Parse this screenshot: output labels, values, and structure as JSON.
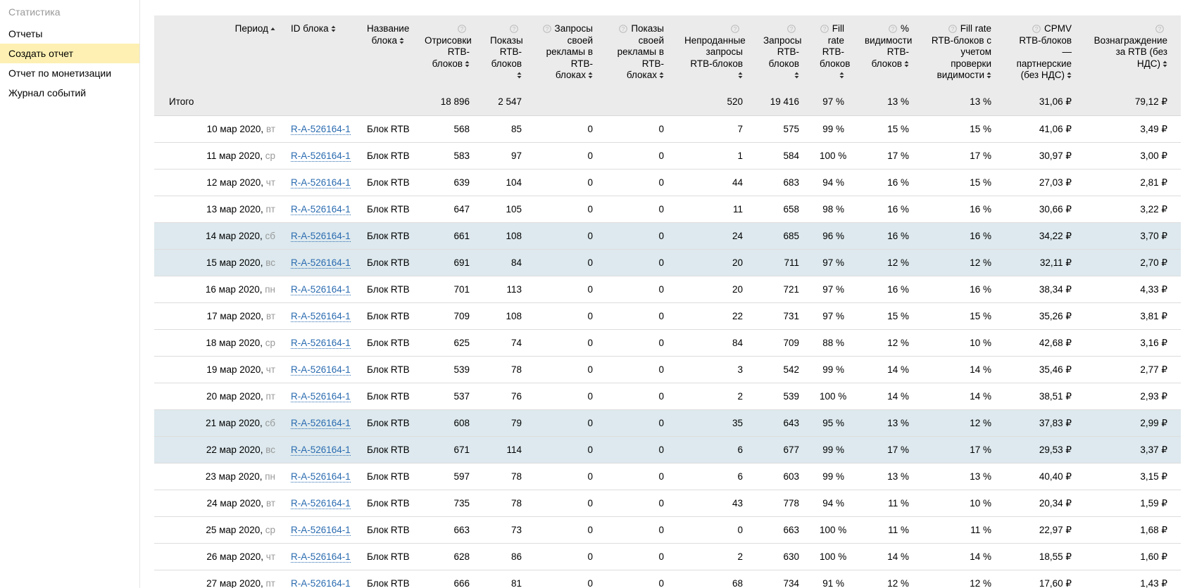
{
  "sidebar": {
    "title": "Статистика",
    "items": [
      "Отчеты",
      "Создать отчет",
      "Отчет по монетизации",
      "Журнал событий"
    ],
    "active": 1
  },
  "table": {
    "headers": [
      {
        "text": "Период",
        "help": false,
        "sort": "asc",
        "align": "right"
      },
      {
        "text": "ID блока",
        "help": false,
        "sort": "both",
        "align": "left"
      },
      {
        "text": "Название блока",
        "help": false,
        "sort": "both",
        "align": "right"
      },
      {
        "text": "Отрисовки RTB-блоков",
        "help": true,
        "sort": "both",
        "align": "right"
      },
      {
        "text": "Показы RTB-блоков",
        "help": true,
        "sort": "both",
        "align": "right"
      },
      {
        "text": "Запросы своей рекламы в RTB-блоках",
        "help": true,
        "sort": "both",
        "align": "right"
      },
      {
        "text": "Показы своей рекламы в RTB-блоках",
        "help": true,
        "sort": "both",
        "align": "right"
      },
      {
        "text": "Непроданные запросы RTB-блоков",
        "help": true,
        "sort": "both",
        "align": "right"
      },
      {
        "text": "Запросы RTB-блоков",
        "help": true,
        "sort": "both",
        "align": "right"
      },
      {
        "text": "Fill rate RTB-блоков",
        "help": true,
        "sort": "both",
        "align": "right"
      },
      {
        "text": "% видимости RTB-блоков",
        "help": true,
        "sort": "both",
        "align": "right"
      },
      {
        "text": "Fill rate RTB-блоков с учетом проверки видимости",
        "help": true,
        "sort": "both",
        "align": "right"
      },
      {
        "text": "CPMV RTB-блоков — партнерские (без НДС)",
        "help": true,
        "sort": "both",
        "align": "right"
      },
      {
        "text": "Вознаграждение за RTB (без НДС)",
        "help": true,
        "sort": "both",
        "align": "right"
      }
    ],
    "totals": {
      "label": "Итого",
      "cells": [
        "18 896",
        "2 547",
        null,
        null,
        "520",
        "19 416",
        "97 %",
        "13 %",
        "13 %",
        "31,06 ₽",
        "79,12 ₽"
      ]
    },
    "rows": [
      {
        "date": "10 мар 2020,",
        "weekday": "вт",
        "id": "R-A-526164-1",
        "name": "Блок RTB",
        "highlight": false,
        "cells": [
          "568",
          "85",
          "0",
          "0",
          "7",
          "575",
          "99 %",
          "15 %",
          "15 %",
          "41,06 ₽",
          "3,49 ₽"
        ]
      },
      {
        "date": "11 мар 2020,",
        "weekday": "ср",
        "id": "R-A-526164-1",
        "name": "Блок RTB",
        "highlight": false,
        "cells": [
          "583",
          "97",
          "0",
          "0",
          "1",
          "584",
          "100 %",
          "17 %",
          "17 %",
          "30,97 ₽",
          "3,00 ₽"
        ]
      },
      {
        "date": "12 мар 2020,",
        "weekday": "чт",
        "id": "R-A-526164-1",
        "name": "Блок RTB",
        "highlight": false,
        "cells": [
          "639",
          "104",
          "0",
          "0",
          "44",
          "683",
          "94 %",
          "16 %",
          "15 %",
          "27,03 ₽",
          "2,81 ₽"
        ]
      },
      {
        "date": "13 мар 2020,",
        "weekday": "пт",
        "id": "R-A-526164-1",
        "name": "Блок RTB",
        "highlight": false,
        "cells": [
          "647",
          "105",
          "0",
          "0",
          "11",
          "658",
          "98 %",
          "16 %",
          "16 %",
          "30,66 ₽",
          "3,22 ₽"
        ]
      },
      {
        "date": "14 мар 2020,",
        "weekday": "сб",
        "id": "R-A-526164-1",
        "name": "Блок RTB",
        "highlight": true,
        "cells": [
          "661",
          "108",
          "0",
          "0",
          "24",
          "685",
          "96 %",
          "16 %",
          "16 %",
          "34,22 ₽",
          "3,70 ₽"
        ]
      },
      {
        "date": "15 мар 2020,",
        "weekday": "вс",
        "id": "R-A-526164-1",
        "name": "Блок RTB",
        "highlight": true,
        "cells": [
          "691",
          "84",
          "0",
          "0",
          "20",
          "711",
          "97 %",
          "12 %",
          "12 %",
          "32,11 ₽",
          "2,70 ₽"
        ]
      },
      {
        "date": "16 мар 2020,",
        "weekday": "пн",
        "id": "R-A-526164-1",
        "name": "Блок RTB",
        "highlight": false,
        "cells": [
          "701",
          "113",
          "0",
          "0",
          "20",
          "721",
          "97 %",
          "16 %",
          "16 %",
          "38,34 ₽",
          "4,33 ₽"
        ]
      },
      {
        "date": "17 мар 2020,",
        "weekday": "вт",
        "id": "R-A-526164-1",
        "name": "Блок RTB",
        "highlight": false,
        "cells": [
          "709",
          "108",
          "0",
          "0",
          "22",
          "731",
          "97 %",
          "15 %",
          "15 %",
          "35,26 ₽",
          "3,81 ₽"
        ]
      },
      {
        "date": "18 мар 2020,",
        "weekday": "ср",
        "id": "R-A-526164-1",
        "name": "Блок RTB",
        "highlight": false,
        "cells": [
          "625",
          "74",
          "0",
          "0",
          "84",
          "709",
          "88 %",
          "12 %",
          "10 %",
          "42,68 ₽",
          "3,16 ₽"
        ]
      },
      {
        "date": "19 мар 2020,",
        "weekday": "чт",
        "id": "R-A-526164-1",
        "name": "Блок RTB",
        "highlight": false,
        "cells": [
          "539",
          "78",
          "0",
          "0",
          "3",
          "542",
          "99 %",
          "14 %",
          "14 %",
          "35,46 ₽",
          "2,77 ₽"
        ]
      },
      {
        "date": "20 мар 2020,",
        "weekday": "пт",
        "id": "R-A-526164-1",
        "name": "Блок RTB",
        "highlight": false,
        "cells": [
          "537",
          "76",
          "0",
          "0",
          "2",
          "539",
          "100 %",
          "14 %",
          "14 %",
          "38,51 ₽",
          "2,93 ₽"
        ]
      },
      {
        "date": "21 мар 2020,",
        "weekday": "сб",
        "id": "R-A-526164-1",
        "name": "Блок RTB",
        "highlight": true,
        "cells": [
          "608",
          "79",
          "0",
          "0",
          "35",
          "643",
          "95 %",
          "13 %",
          "12 %",
          "37,83 ₽",
          "2,99 ₽"
        ]
      },
      {
        "date": "22 мар 2020,",
        "weekday": "вс",
        "id": "R-A-526164-1",
        "name": "Блок RTB",
        "highlight": true,
        "cells": [
          "671",
          "114",
          "0",
          "0",
          "6",
          "677",
          "99 %",
          "17 %",
          "17 %",
          "29,53 ₽",
          "3,37 ₽"
        ]
      },
      {
        "date": "23 мар 2020,",
        "weekday": "пн",
        "id": "R-A-526164-1",
        "name": "Блок RTB",
        "highlight": false,
        "cells": [
          "597",
          "78",
          "0",
          "0",
          "6",
          "603",
          "99 %",
          "13 %",
          "13 %",
          "40,40 ₽",
          "3,15 ₽"
        ]
      },
      {
        "date": "24 мар 2020,",
        "weekday": "вт",
        "id": "R-A-526164-1",
        "name": "Блок RTB",
        "highlight": false,
        "cells": [
          "735",
          "78",
          "0",
          "0",
          "43",
          "778",
          "94 %",
          "11 %",
          "10 %",
          "20,34 ₽",
          "1,59 ₽"
        ]
      },
      {
        "date": "25 мар 2020,",
        "weekday": "ср",
        "id": "R-A-526164-1",
        "name": "Блок RTB",
        "highlight": false,
        "cells": [
          "663",
          "73",
          "0",
          "0",
          "0",
          "663",
          "100 %",
          "11 %",
          "11 %",
          "22,97 ₽",
          "1,68 ₽"
        ]
      },
      {
        "date": "26 мар 2020,",
        "weekday": "чт",
        "id": "R-A-526164-1",
        "name": "Блок RTB",
        "highlight": false,
        "cells": [
          "628",
          "86",
          "0",
          "0",
          "2",
          "630",
          "100 %",
          "14 %",
          "14 %",
          "18,55 ₽",
          "1,60 ₽"
        ]
      },
      {
        "date": "27 мар 2020,",
        "weekday": "пт",
        "id": "R-A-526164-1",
        "name": "Блок RTB",
        "highlight": false,
        "cells": [
          "666",
          "81",
          "0",
          "0",
          "68",
          "734",
          "91 %",
          "12 %",
          "12 %",
          "17,60 ₽",
          "1,43 ₽"
        ]
      }
    ]
  }
}
